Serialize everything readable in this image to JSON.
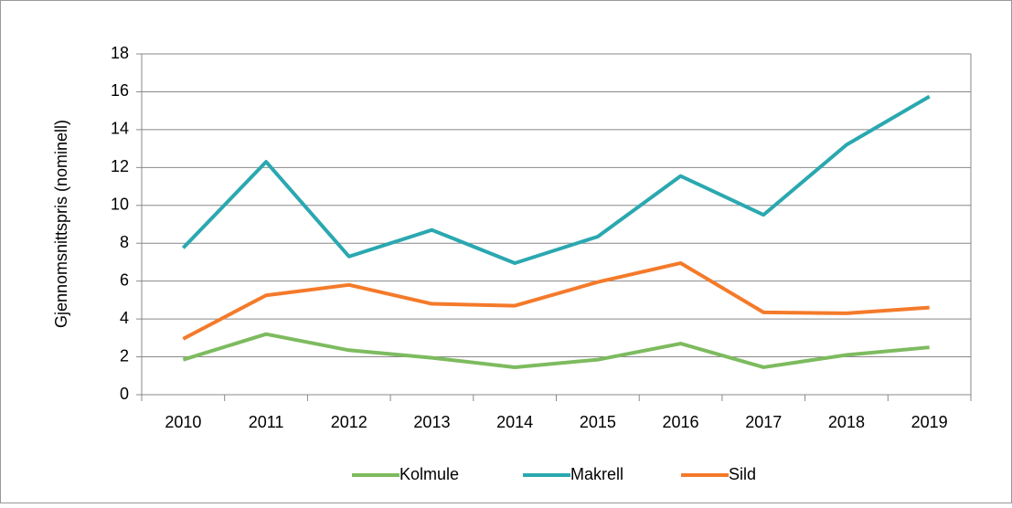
{
  "chart_data": {
    "type": "line",
    "y_label": "Gjennomsnittspris (nominell)",
    "categories": [
      "2010",
      "2011",
      "2012",
      "2013",
      "2014",
      "2015",
      "2016",
      "2017",
      "2018",
      "2019"
    ],
    "series": [
      {
        "name": "Kolmule",
        "color": "#7dbb5f",
        "values": [
          1.85,
          3.2,
          2.35,
          1.95,
          1.45,
          1.85,
          2.7,
          1.45,
          2.1,
          2.5
        ]
      },
      {
        "name": "Makrell",
        "color": "#2aa8b0",
        "values": [
          7.75,
          12.3,
          7.3,
          8.7,
          6.95,
          8.35,
          11.55,
          9.5,
          13.2,
          15.75
        ]
      },
      {
        "name": "Sild",
        "color": "#f47a2a",
        "values": [
          2.95,
          5.25,
          5.8,
          4.8,
          4.7,
          5.95,
          6.95,
          4.35,
          4.3,
          4.6
        ]
      }
    ],
    "ylim": [
      0,
      18
    ],
    "yticks": [
      0,
      2,
      4,
      6,
      8,
      10,
      12,
      14,
      16,
      18
    ],
    "grid": true,
    "legend": "bottom"
  }
}
